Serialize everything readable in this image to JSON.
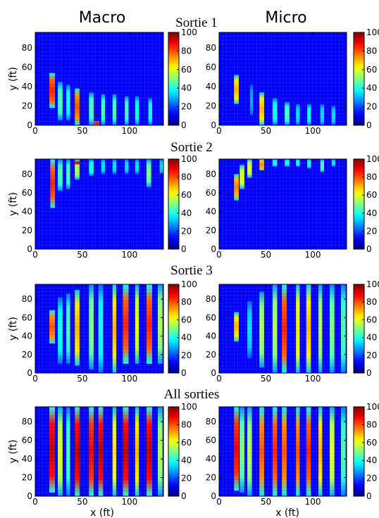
{
  "figure": {
    "col_titles": [
      "Macro",
      "Micro"
    ],
    "row_titles": [
      "Sortie 1",
      "Sortie 2",
      "Sortie 3",
      "All sorties"
    ],
    "xlabel": "x (ft)",
    "ylabel": "y (ft)"
  },
  "chart_data": {
    "type": "heatmap",
    "colormap": "jet",
    "background_value": 0,
    "x_ticks": [
      0,
      50,
      100
    ],
    "y_ticks": [
      0,
      20,
      40,
      60,
      80
    ],
    "colorbar_ticks": [
      0,
      20,
      40,
      60,
      80,
      100
    ],
    "xlim": [
      0,
      136
    ],
    "ylim": [
      0,
      96
    ],
    "clim": [
      0,
      100
    ],
    "grid": true,
    "panels": [
      {
        "row": "Sortie 1",
        "col": "Macro",
        "stripes": [
          {
            "x": [
              15,
              21
            ],
            "y": [
              18,
              54
            ],
            "peak": 85
          },
          {
            "x": [
              24,
              29
            ],
            "y": [
              5,
              45
            ],
            "peak": 45
          },
          {
            "x": [
              33,
              37
            ],
            "y": [
              5,
              42
            ],
            "peak": 40
          },
          {
            "x": [
              42,
              47
            ],
            "y": [
              0,
              38
            ],
            "peak": 80
          },
          {
            "x": [
              57,
              62
            ],
            "y": [
              0,
              34
            ],
            "peak": 45
          },
          {
            "x": [
              62,
              68
            ],
            "y": [
              0,
              4
            ],
            "peak": 90
          },
          {
            "x": [
              70,
              74
            ],
            "y": [
              0,
              32
            ],
            "peak": 45
          },
          {
            "x": [
              82,
              86
            ],
            "y": [
              0,
              32
            ],
            "peak": 45
          },
          {
            "x": [
              95,
              99
            ],
            "y": [
              0,
              30
            ],
            "peak": 45
          },
          {
            "x": [
              106,
              110
            ],
            "y": [
              0,
              30
            ],
            "peak": 40
          },
          {
            "x": [
              120,
              124
            ],
            "y": [
              0,
              28
            ],
            "peak": 40
          }
        ]
      },
      {
        "row": "Sortie 1",
        "col": "Micro",
        "stripes": [
          {
            "x": [
              16,
              21
            ],
            "y": [
              22,
              52
            ],
            "peak": 70
          },
          {
            "x": [
              33,
              36
            ],
            "y": [
              10,
              42
            ],
            "peak": 30
          },
          {
            "x": [
              43,
              48
            ],
            "y": [
              0,
              34
            ],
            "peak": 70
          },
          {
            "x": [
              57,
              62
            ],
            "y": [
              0,
              28
            ],
            "peak": 40
          },
          {
            "x": [
              70,
              75
            ],
            "y": [
              0,
              24
            ],
            "peak": 45
          },
          {
            "x": [
              82,
              86
            ],
            "y": [
              0,
              22
            ],
            "peak": 35
          },
          {
            "x": [
              94,
              98
            ],
            "y": [
              0,
              22
            ],
            "peak": 40
          },
          {
            "x": [
              108,
              112
            ],
            "y": [
              0,
              22
            ],
            "peak": 35
          },
          {
            "x": [
              120,
              124
            ],
            "y": [
              0,
              20
            ],
            "peak": 35
          }
        ]
      },
      {
        "row": "Sortie 2",
        "col": "Macro",
        "stripes": [
          {
            "x": [
              16,
              21
            ],
            "y": [
              44,
              96
            ],
            "peak": 85
          },
          {
            "x": [
              24,
              29
            ],
            "y": [
              62,
              96
            ],
            "peak": 45
          },
          {
            "x": [
              33,
              37
            ],
            "y": [
              64,
              96
            ],
            "peak": 45
          },
          {
            "x": [
              42,
              47
            ],
            "y": [
              74,
              96
            ],
            "peak": 55
          },
          {
            "x": [
              42,
              47
            ],
            "y": [
              90,
              94
            ],
            "peak": 95
          },
          {
            "x": [
              57,
              62
            ],
            "y": [
              78,
              96
            ],
            "peak": 40
          },
          {
            "x": [
              70,
              74
            ],
            "y": [
              80,
              96
            ],
            "peak": 35
          },
          {
            "x": [
              82,
              86
            ],
            "y": [
              80,
              96
            ],
            "peak": 35
          },
          {
            "x": [
              95,
              99
            ],
            "y": [
              80,
              96
            ],
            "peak": 35
          },
          {
            "x": [
              106,
              110
            ],
            "y": [
              80,
              96
            ],
            "peak": 35
          },
          {
            "x": [
              118,
              123
            ],
            "y": [
              66,
              96
            ],
            "peak": 50
          },
          {
            "x": [
              132,
              136
            ],
            "y": [
              80,
              96
            ],
            "peak": 35
          }
        ]
      },
      {
        "row": "Sortie 2",
        "col": "Micro",
        "stripes": [
          {
            "x": [
              16,
              21
            ],
            "y": [
              52,
              80
            ],
            "peak": 75
          },
          {
            "x": [
              22,
              27
            ],
            "y": [
              64,
              90
            ],
            "peak": 60
          },
          {
            "x": [
              30,
              35
            ],
            "y": [
              76,
              96
            ],
            "peak": 60
          },
          {
            "x": [
              43,
              48
            ],
            "y": [
              84,
              96
            ],
            "peak": 75
          },
          {
            "x": [
              57,
              62
            ],
            "y": [
              88,
              96
            ],
            "peak": 40
          },
          {
            "x": [
              70,
              75
            ],
            "y": [
              88,
              96
            ],
            "peak": 40
          },
          {
            "x": [
              82,
              86
            ],
            "y": [
              88,
              96
            ],
            "peak": 40
          },
          {
            "x": [
              94,
              98
            ],
            "y": [
              86,
              96
            ],
            "peak": 40
          },
          {
            "x": [
              108,
              112
            ],
            "y": [
              82,
              96
            ],
            "peak": 45
          },
          {
            "x": [
              120,
              124
            ],
            "y": [
              88,
              96
            ],
            "peak": 35
          }
        ]
      },
      {
        "row": "Sortie 3",
        "col": "Macro",
        "stripes": [
          {
            "x": [
              15,
              21
            ],
            "y": [
              32,
              68
            ],
            "peak": 80
          },
          {
            "x": [
              24,
              29
            ],
            "y": [
              10,
              82
            ],
            "peak": 40
          },
          {
            "x": [
              33,
              37
            ],
            "y": [
              10,
              86
            ],
            "peak": 45
          },
          {
            "x": [
              42,
              47
            ],
            "y": [
              8,
              90
            ],
            "peak": 70
          },
          {
            "x": [
              57,
              62
            ],
            "y": [
              4,
              96
            ],
            "peak": 50
          },
          {
            "x": [
              67,
              72
            ],
            "y": [
              0,
              96
            ],
            "peak": 40
          },
          {
            "x": [
              82,
              86
            ],
            "y": [
              0,
              96
            ],
            "peak": 70
          },
          {
            "x": [
              93,
              99
            ],
            "y": [
              10,
              96
            ],
            "peak": 85
          },
          {
            "x": [
              106,
              110
            ],
            "y": [
              10,
              96
            ],
            "peak": 60
          },
          {
            "x": [
              118,
              124
            ],
            "y": [
              10,
              96
            ],
            "peak": 85
          },
          {
            "x": [
              130,
              135
            ],
            "y": [
              10,
              96
            ],
            "peak": 55
          }
        ]
      },
      {
        "row": "Sortie 3",
        "col": "Micro",
        "stripes": [
          {
            "x": [
              16,
              21
            ],
            "y": [
              34,
              66
            ],
            "peak": 70
          },
          {
            "x": [
              30,
              35
            ],
            "y": [
              16,
              78
            ],
            "peak": 35
          },
          {
            "x": [
              43,
              48
            ],
            "y": [
              6,
              88
            ],
            "peak": 55
          },
          {
            "x": [
              57,
              62
            ],
            "y": [
              0,
              96
            ],
            "peak": 55
          },
          {
            "x": [
              67,
              72
            ],
            "y": [
              0,
              96
            ],
            "peak": 85
          },
          {
            "x": [
              82,
              86
            ],
            "y": [
              0,
              96
            ],
            "peak": 65
          },
          {
            "x": [
              93,
              98
            ],
            "y": [
              0,
              96
            ],
            "peak": 70
          },
          {
            "x": [
              106,
              110
            ],
            "y": [
              0,
              96
            ],
            "peak": 55
          },
          {
            "x": [
              118,
              123
            ],
            "y": [
              0,
              96
            ],
            "peak": 50
          },
          {
            "x": [
              130,
              135
            ],
            "y": [
              0,
              96
            ],
            "peak": 45
          }
        ]
      },
      {
        "row": "All sorties",
        "col": "Macro",
        "stripes": [
          {
            "x": [
              15,
              21
            ],
            "y": [
              4,
              96
            ],
            "peak": 95
          },
          {
            "x": [
              24,
              29
            ],
            "y": [
              0,
              96
            ],
            "peak": 60
          },
          {
            "x": [
              33,
              37
            ],
            "y": [
              0,
              96
            ],
            "peak": 45
          },
          {
            "x": [
              42,
              47
            ],
            "y": [
              0,
              96
            ],
            "peak": 95
          },
          {
            "x": [
              57,
              62
            ],
            "y": [
              0,
              96
            ],
            "peak": 90
          },
          {
            "x": [
              67,
              72
            ],
            "y": [
              0,
              96
            ],
            "peak": 95
          },
          {
            "x": [
              82,
              86
            ],
            "y": [
              0,
              96
            ],
            "peak": 65
          },
          {
            "x": [
              93,
              99
            ],
            "y": [
              0,
              96
            ],
            "peak": 95
          },
          {
            "x": [
              106,
              110
            ],
            "y": [
              0,
              96
            ],
            "peak": 70
          },
          {
            "x": [
              118,
              124
            ],
            "y": [
              0,
              96
            ],
            "peak": 95
          },
          {
            "x": [
              130,
              135
            ],
            "y": [
              0,
              96
            ],
            "peak": 55
          }
        ]
      },
      {
        "row": "All sorties",
        "col": "Micro",
        "stripes": [
          {
            "x": [
              16,
              21
            ],
            "y": [
              6,
              96
            ],
            "peak": 90
          },
          {
            "x": [
              22,
              27
            ],
            "y": [
              4,
              96
            ],
            "peak": 50
          },
          {
            "x": [
              30,
              35
            ],
            "y": [
              0,
              96
            ],
            "peak": 55
          },
          {
            "x": [
              43,
              48
            ],
            "y": [
              0,
              96
            ],
            "peak": 80
          },
          {
            "x": [
              57,
              62
            ],
            "y": [
              0,
              96
            ],
            "peak": 85
          },
          {
            "x": [
              67,
              72
            ],
            "y": [
              0,
              96
            ],
            "peak": 80
          },
          {
            "x": [
              82,
              86
            ],
            "y": [
              0,
              96
            ],
            "peak": 80
          },
          {
            "x": [
              93,
              98
            ],
            "y": [
              0,
              96
            ],
            "peak": 85
          },
          {
            "x": [
              106,
              110
            ],
            "y": [
              0,
              96
            ],
            "peak": 70
          },
          {
            "x": [
              118,
              123
            ],
            "y": [
              0,
              96
            ],
            "peak": 60
          },
          {
            "x": [
              130,
              135
            ],
            "y": [
              0,
              96
            ],
            "peak": 45
          }
        ]
      }
    ]
  }
}
